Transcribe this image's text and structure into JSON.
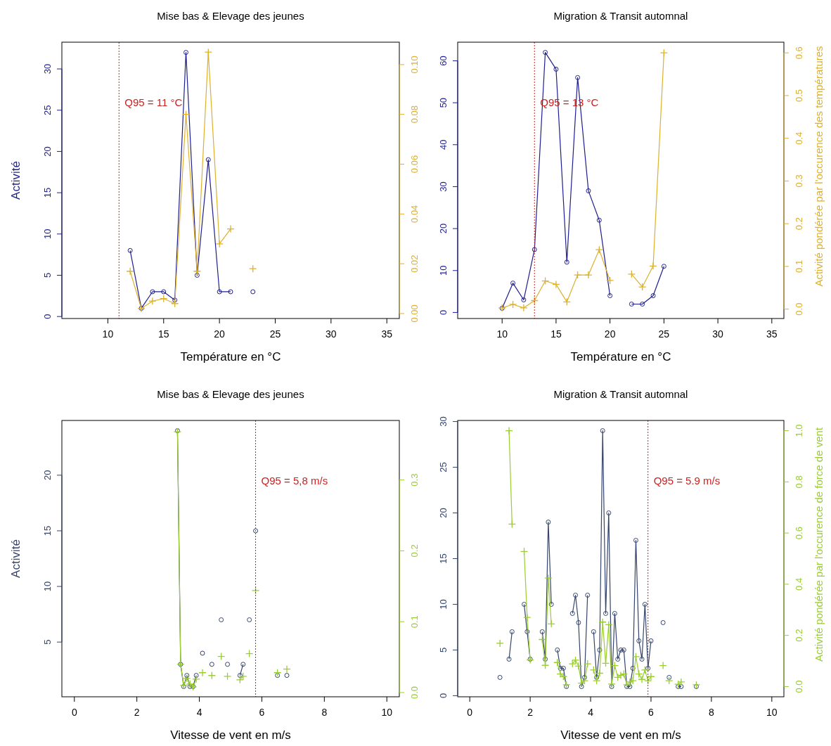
{
  "chart_data": [
    {
      "type": "line",
      "title": "Mise bas & Elevage des jeunes",
      "xlabel": "Température en °C",
      "ylabel": "Activité",
      "x": [
        12,
        13,
        14,
        15,
        16,
        17,
        18,
        19,
        20,
        21,
        22,
        23
      ],
      "series": [
        {
          "color": "#1f1f8f",
          "marker": "circle",
          "axis": "y",
          "values": [
            8,
            1,
            3,
            3,
            2,
            32,
            5,
            19,
            3,
            3,
            null,
            3
          ]
        },
        {
          "color": "#ddb12e",
          "marker": "cross",
          "axis": "y2",
          "values": [
            0.017,
            0.002,
            0.005,
            0.006,
            0.004,
            0.08,
            0.017,
            0.105,
            0.028,
            0.034,
            null,
            0.018
          ]
        }
      ],
      "xlim": [
        5.88,
        36.12
      ],
      "xticks": [
        10,
        15,
        20,
        25,
        30,
        35
      ],
      "ylim": [
        -0.24,
        33.24
      ],
      "yticks": [
        0,
        5,
        10,
        15,
        20,
        25,
        30
      ],
      "y2lim": [
        -0.002,
        0.109
      ],
      "y2ticks": [
        {
          "value": 0,
          "label": "0.00"
        },
        {
          "value": 0.02,
          "label": "0.02"
        },
        {
          "value": 0.04,
          "label": "0.04"
        },
        {
          "value": 0.06,
          "label": "0.06"
        },
        {
          "value": 0.08,
          "label": "0.08"
        },
        {
          "value": 0.1,
          "label": "0.10"
        }
      ],
      "ref_lines": [
        {
          "axis": "x",
          "value": 11,
          "label": "Q95 = 11 °C",
          "color": "#cc2222",
          "line_style": "dotted"
        }
      ]
    },
    {
      "type": "line",
      "title": "Migration & Transit automnal",
      "xlabel": "Température en °C",
      "y2label": "Activité pondérée par l'occurence des températures",
      "x": [
        10,
        11,
        12,
        13,
        14,
        15,
        16,
        17,
        18,
        19,
        20,
        21,
        22,
        23,
        24,
        25
      ],
      "series": [
        {
          "color": "#1f1f8f",
          "marker": "circle",
          "axis": "y",
          "values": [
            1,
            7,
            3,
            15,
            62,
            58,
            12,
            56,
            29,
            22,
            4,
            null,
            2,
            2,
            4,
            11
          ]
        },
        {
          "color": "#ddb12e",
          "marker": "cross",
          "axis": "y2",
          "values": [
            0.003,
            0.011,
            0.003,
            0.02,
            0.066,
            0.058,
            0.017,
            0.08,
            0.08,
            0.139,
            0.067,
            null,
            0.082,
            0.052,
            0.101,
            0.6
          ]
        }
      ],
      "xlim": [
        5.88,
        36.12
      ],
      "xticks": [
        10,
        15,
        20,
        25,
        30,
        35
      ],
      "ylim": [
        -1.44,
        64.44
      ],
      "yticks": [
        0,
        10,
        20,
        30,
        40,
        50,
        60
      ],
      "y2lim": [
        -0.022,
        0.625
      ],
      "y2ticks": [
        {
          "value": 0,
          "label": "0.0"
        },
        {
          "value": 0.1,
          "label": "0.1"
        },
        {
          "value": 0.2,
          "label": "0.2"
        },
        {
          "value": 0.3,
          "label": "0.3"
        },
        {
          "value": 0.4,
          "label": "0.4"
        },
        {
          "value": 0.5,
          "label": "0.5"
        },
        {
          "value": 0.6,
          "label": "0.6"
        }
      ],
      "ref_lines": [
        {
          "axis": "x",
          "value": 13,
          "label": "Q95 = 13 °C",
          "color": "#cc2222",
          "line_style": "dotted"
        }
      ]
    },
    {
      "type": "line",
      "title": "Mise bas & Elevage des jeunes",
      "xlabel": "Vitesse de vent en m/s",
      "ylabel": "Activité",
      "x": [
        3.3,
        3.4,
        3.5,
        3.6,
        3.7,
        3.8,
        3.9,
        4.0,
        4.1,
        4.2,
        4.4,
        4.5,
        4.7,
        4.8,
        4.9,
        5.0,
        5.3,
        5.4,
        5.5,
        5.6,
        5.7,
        5.8,
        6.0,
        6.5,
        6.6,
        6.8
      ],
      "series": [
        {
          "color": "#34446c",
          "marker": "circle",
          "axis": "y",
          "values": [
            24,
            3,
            1,
            2,
            1,
            1,
            2,
            null,
            4,
            null,
            3,
            null,
            7,
            null,
            3,
            null,
            2,
            3,
            null,
            7,
            null,
            15,
            null,
            2,
            null,
            2
          ]
        },
        {
          "color": "#9acd32",
          "marker": "cross",
          "axis": "y2",
          "values": [
            0.368,
            0.04,
            0.01,
            0.02,
            0.012,
            0.008,
            0.019,
            null,
            0.028,
            null,
            0.024,
            null,
            0.051,
            null,
            0.023,
            null,
            0.018,
            0.023,
            null,
            0.055,
            null,
            0.144,
            null,
            0.028,
            null,
            0.033
          ]
        }
      ],
      "xlim": [
        -0.4,
        10.4
      ],
      "xticks": [
        0,
        2,
        4,
        6,
        8,
        10
      ],
      "ylim": [
        0.08,
        24.92
      ],
      "yticks": [
        5,
        10,
        15,
        20
      ],
      "y2lim": [
        -0.006,
        0.384
      ],
      "y2ticks": [
        {
          "value": 0,
          "label": "0.0"
        },
        {
          "value": 0.1,
          "label": "0.1"
        },
        {
          "value": 0.2,
          "label": "0.2"
        },
        {
          "value": 0.3,
          "label": "0.3"
        }
      ],
      "ref_lines": [
        {
          "axis": "x",
          "value": 5.8,
          "label": "Q95 = 5,8 m/s",
          "color": "#cc2222",
          "line_style": "dotted"
        }
      ]
    },
    {
      "type": "line",
      "title": "Migration & Transit automnal",
      "xlabel": "Vitesse de vent en m/s",
      "y2label": "Activité pondérée par l'occurence de force de vent",
      "x": [
        1.0,
        1.1,
        1.3,
        1.4,
        1.5,
        1.8,
        1.9,
        2.0,
        2.1,
        2.4,
        2.5,
        2.6,
        2.7,
        2.8,
        2.9,
        3.0,
        3.1,
        3.2,
        3.3,
        3.4,
        3.5,
        3.6,
        3.7,
        3.8,
        3.9,
        4.0,
        4.1,
        4.2,
        4.3,
        4.4,
        4.5,
        4.6,
        4.7,
        4.8,
        4.9,
        5.0,
        5.1,
        5.2,
        5.3,
        5.4,
        5.5,
        5.6,
        5.7,
        5.8,
        5.9,
        6.0,
        6.1,
        6.4,
        6.5,
        6.6,
        6.7,
        6.9,
        7.0,
        7.1,
        7.5
      ],
      "series": [
        {
          "color": "#34446c",
          "marker": "circle",
          "axis": "y",
          "values": [
            2,
            null,
            4,
            7,
            null,
            10,
            7,
            4,
            null,
            7,
            4,
            19,
            10,
            null,
            5,
            3,
            3,
            1,
            null,
            9,
            11,
            8,
            1,
            2,
            11,
            null,
            7,
            2,
            5,
            29,
            9,
            20,
            1,
            9,
            4,
            5,
            5,
            1,
            1,
            3,
            17,
            6,
            4,
            10,
            3,
            6,
            null,
            8,
            null,
            2,
            null,
            1,
            1,
            null,
            1
          ]
        },
        {
          "color": "#9acd32",
          "marker": "cross",
          "axis": "y2",
          "values": [
            0.169,
            null,
            1.0,
            0.635,
            null,
            0.528,
            0.27,
            0.104,
            null,
            0.184,
            0.083,
            0.424,
            0.245,
            null,
            0.094,
            0.049,
            0.039,
            0.007,
            null,
            0.089,
            0.103,
            0.08,
            0.013,
            0.023,
            0.089,
            null,
            0.065,
            0.023,
            0.052,
            0.252,
            0.091,
            0.242,
            0.01,
            0.082,
            0.036,
            0.044,
            0.049,
            0.007,
            0.018,
            0.023,
            0.117,
            0.049,
            0.028,
            0.065,
            0.023,
            0.039,
            null,
            0.082,
            null,
            0.023,
            null,
            0.009,
            0.018,
            null,
            0.007
          ]
        }
      ],
      "xlim": [
        -0.4,
        10.4
      ],
      "xticks": [
        0,
        2,
        4,
        6,
        8,
        10
      ],
      "ylim": [
        -0.12,
        30.12
      ],
      "yticks": [
        0,
        5,
        10,
        15,
        20,
        25,
        30
      ],
      "y2lim": [
        -0.04,
        1.04
      ],
      "y2ticks": [
        {
          "value": 0,
          "label": "0.0"
        },
        {
          "value": 0.2,
          "label": "0.2"
        },
        {
          "value": 0.4,
          "label": "0.4"
        },
        {
          "value": 0.6,
          "label": "0.6"
        },
        {
          "value": 0.8,
          "label": "0.8"
        },
        {
          "value": 1,
          "label": "1.0"
        }
      ],
      "ref_lines": [
        {
          "axis": "x",
          "value": 5.9,
          "label": "Q95 = 5.9 m/s",
          "color": "#cc2222",
          "line_style": "dotted"
        }
      ]
    }
  ]
}
